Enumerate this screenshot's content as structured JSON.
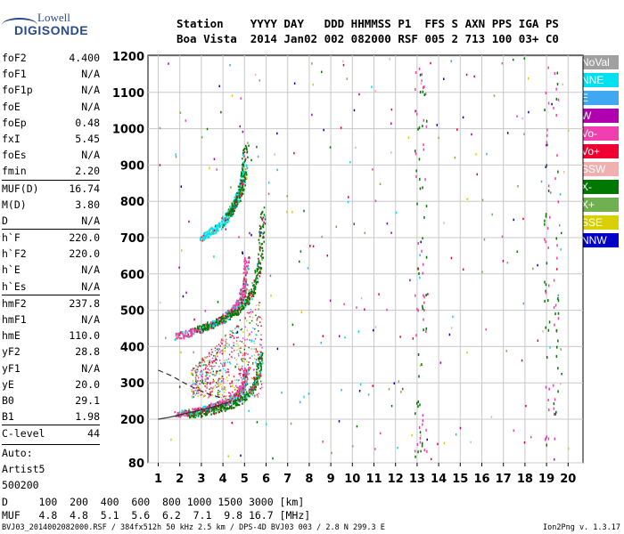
{
  "logo": {
    "line1": "Lowell",
    "line2": "DIGISONDE"
  },
  "header": {
    "line1": "Station    YYYY DAY   DDD HHMMSS P1  FFS S AXN PPS IGA PS",
    "line2": "Boa Vista  2014 Jan02 002 082000 RSF 005 2 713 100 03+ C0"
  },
  "params": [
    {
      "label": "foF2",
      "value": "4.400"
    },
    {
      "label": "foF1",
      "value": "N/A"
    },
    {
      "label": "foF1p",
      "value": "N/A"
    },
    {
      "label": "foE",
      "value": "N/A"
    },
    {
      "label": "foEp",
      "value": "0.48"
    },
    {
      "label": "fxI",
      "value": "5.45"
    },
    {
      "label": "foEs",
      "value": "N/A"
    },
    {
      "label": "fmin",
      "value": "2.20"
    },
    {
      "label": "MUF(D)",
      "value": "16.74"
    },
    {
      "label": "M(D)",
      "value": "3.80"
    },
    {
      "label": "D",
      "value": "N/A"
    },
    {
      "label": "h`F",
      "value": "220.0"
    },
    {
      "label": "h`F2",
      "value": "220.0"
    },
    {
      "label": "h`E",
      "value": "N/A"
    },
    {
      "label": "h`Es",
      "value": "N/A"
    },
    {
      "label": "hmF2",
      "value": "237.8"
    },
    {
      "label": "hmF1",
      "value": "N/A"
    },
    {
      "label": "hmE",
      "value": "110.0"
    },
    {
      "label": "yF2",
      "value": "28.8"
    },
    {
      "label": "yF1",
      "value": "N/A"
    },
    {
      "label": "yE",
      "value": "20.0"
    },
    {
      "label": "B0",
      "value": "29.1"
    },
    {
      "label": "B1",
      "value": "1.98"
    },
    {
      "label": "C-level",
      "value": "44"
    }
  ],
  "auto": [
    "Auto:",
    "Artist5",
    "500200"
  ],
  "legend": [
    {
      "label": "NoVal",
      "color": "#a0a0a0"
    },
    {
      "label": "NNE",
      "color": "#00e0f0"
    },
    {
      "label": "E",
      "color": "#40a8f0"
    },
    {
      "label": "W",
      "color": "#b000b0"
    },
    {
      "label": "Vo-",
      "color": "#f040b0"
    },
    {
      "label": "Vo+",
      "color": "#f00030"
    },
    {
      "label": "SSW",
      "color": "#f0b0b0"
    },
    {
      "label": "X-",
      "color": "#007800"
    },
    {
      "label": "X+",
      "color": "#70b050"
    },
    {
      "label": "SSE",
      "color": "#d8d000"
    },
    {
      "label": "NNW",
      "color": "#0000c8"
    }
  ],
  "bottom": {
    "row1": "D     100  200  400  600  800 1000 1500 3000 [km]",
    "row2": "MUF   4.8  4.8  5.1  5.6  6.2  7.1  9.8 16.7 [MHz]"
  },
  "footer": {
    "left": "BVJ03_2014002082000.RSF / 384fx512h 50 kHz 2.5 km / DPS-4D BVJ03 003 / 2.8 N 299.3 E",
    "right": "Ion2Png v. 1.3.17"
  },
  "chart_data": {
    "type": "scatter",
    "x_ticks": [
      1,
      2,
      3,
      4,
      5,
      6,
      7,
      8,
      9,
      10,
      11,
      12,
      13,
      14,
      15,
      16,
      17,
      18,
      19,
      20
    ],
    "y_ticks": [
      80,
      200,
      300,
      400,
      500,
      600,
      700,
      800,
      900,
      1000,
      1100,
      1200
    ],
    "xlim": [
      0.5,
      20.3
    ],
    "ylim": [
      80,
      1210
    ],
    "grid": true,
    "legend_position": "right",
    "traces": [
      {
        "name": "F2 1-hop O",
        "color": "#f040b0",
        "x": [
          1.8,
          2.4,
          3.0,
          3.6,
          4.2,
          4.7,
          4.95,
          5.05
        ],
        "y": [
          215,
          220,
          228,
          238,
          252,
          270,
          295,
          340
        ]
      },
      {
        "name": "F2 1-hop X",
        "color": "#007800",
        "x": [
          2.4,
          3.2,
          4.0,
          4.7,
          5.3,
          5.6,
          5.75
        ],
        "y": [
          215,
          222,
          232,
          250,
          280,
          320,
          380
        ]
      },
      {
        "name": "F2 2-hop O",
        "color": "#f040b0",
        "x": [
          1.8,
          2.5,
          3.2,
          3.9,
          4.4,
          4.8,
          5.0,
          5.1
        ],
        "y": [
          430,
          440,
          455,
          475,
          500,
          530,
          570,
          650
        ]
      },
      {
        "name": "F2 2-hop X",
        "color": "#007800",
        "x": [
          2.8,
          3.6,
          4.4,
          5.0,
          5.4,
          5.7,
          5.85
        ],
        "y": [
          450,
          465,
          490,
          520,
          560,
          640,
          780
        ]
      },
      {
        "name": "F2 3-hop",
        "color": "#00e0f0",
        "x": [
          3.0,
          3.5,
          4.0,
          4.4,
          4.8,
          5.0
        ],
        "y": [
          700,
          720,
          745,
          780,
          830,
          900
        ]
      },
      {
        "name": "F2 3-hop X",
        "color": "#007800",
        "x": [
          4.2,
          4.6,
          4.9,
          5.05
        ],
        "y": [
          760,
          800,
          850,
          960
        ]
      }
    ]
  }
}
